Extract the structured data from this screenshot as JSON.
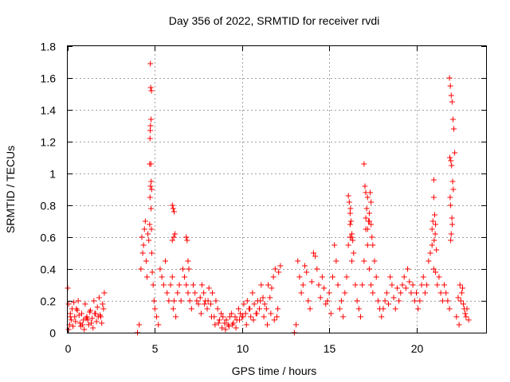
{
  "chart_data": {
    "type": "scatter",
    "title": "Day 356 of 2022, SRMTID for receiver rvdi",
    "xlabel": "GPS time / hours",
    "ylabel": "SRMTID / TECUs",
    "xlim": [
      0,
      24
    ],
    "ylim": [
      0,
      1.8
    ],
    "xticks": [
      "0",
      "5",
      "10",
      "15",
      "20"
    ],
    "yticks": [
      "0",
      "0.2",
      "0.4",
      "0.6",
      "0.8",
      "1",
      "1.2",
      "1.4",
      "1.6",
      "1.8"
    ],
    "xtick_values": [
      0,
      5,
      10,
      15,
      20
    ],
    "ytick_values": [
      0,
      0.2,
      0.4,
      0.6,
      0.8,
      1.0,
      1.2,
      1.4,
      1.6,
      1.8
    ],
    "grid": true,
    "marker": "+",
    "color": "#ff0000",
    "series": [
      {
        "name": "SRMTID",
        "x": [
          0.0,
          0.05,
          0.1,
          0.15,
          0.2,
          0.3,
          0.4,
          0.5,
          0.6,
          0.7,
          0.8,
          0.9,
          1.0,
          1.1,
          1.2,
          1.3,
          1.4,
          1.5,
          1.6,
          1.7,
          1.8,
          1.9,
          2.0,
          2.1,
          0.05,
          0.25,
          0.45,
          0.65,
          0.85,
          1.05,
          1.25,
          1.45,
          1.65,
          1.85,
          2.05,
          0.35,
          0.75,
          1.15,
          1.55,
          1.95,
          0.15,
          0.55,
          0.95,
          1.35,
          1.75,
          4.0,
          4.1,
          4.2,
          4.25,
          4.3,
          4.35,
          4.4,
          4.45,
          4.5,
          4.55,
          4.6,
          4.65,
          4.7,
          4.72,
          4.75,
          4.78,
          4.8,
          4.82,
          4.85,
          4.9,
          4.95,
          5.0,
          5.1,
          5.2,
          4.7,
          4.72,
          4.75,
          4.78,
          4.8,
          4.76,
          4.74,
          4.77,
          4.73,
          4.79,
          4.81,
          5.3,
          5.4,
          5.5,
          5.6,
          5.7,
          5.8,
          5.9,
          6.0,
          6.05,
          6.1,
          6.2,
          6.3,
          6.4,
          6.5,
          6.6,
          6.7,
          6.8,
          6.9,
          7.0,
          7.1,
          7.2,
          7.3,
          7.4,
          7.5,
          6.0,
          6.05,
          6.1,
          6.15,
          6.0,
          6.08,
          6.8,
          6.85,
          6.9,
          6.95,
          7.6,
          7.7,
          7.8,
          7.9,
          8.0,
          8.1,
          8.2,
          8.3,
          8.4,
          8.5,
          8.6,
          8.7,
          8.8,
          8.9,
          9.0,
          9.1,
          9.2,
          9.3,
          9.4,
          9.5,
          9.6,
          9.7,
          9.8,
          9.9,
          10.0,
          10.1,
          10.2,
          10.3,
          10.4,
          10.5,
          10.6,
          10.7,
          10.8,
          10.9,
          11.0,
          11.1,
          11.2,
          11.3,
          11.4,
          11.5,
          11.6,
          11.7,
          11.8,
          11.9,
          12.0,
          12.1,
          12.2,
          7.65,
          7.85,
          8.05,
          8.25,
          8.45,
          8.65,
          8.85,
          9.05,
          9.25,
          9.45,
          9.65,
          9.85,
          10.05,
          10.25,
          10.45,
          10.65,
          10.85,
          11.05,
          11.25,
          11.45,
          11.65,
          11.85,
          12.05,
          13.0,
          13.1,
          13.2,
          13.3,
          13.4,
          13.5,
          13.6,
          13.7,
          13.8,
          13.9,
          14.0,
          14.1,
          14.2,
          14.3,
          14.4,
          14.5,
          14.6,
          14.7,
          14.8,
          14.9,
          15.0,
          15.1,
          15.2,
          15.3,
          15.4,
          15.5,
          15.6,
          15.7,
          15.8,
          15.9,
          16.0,
          16.1,
          16.2,
          16.3,
          16.4,
          16.5,
          16.6,
          16.7,
          16.8,
          16.9,
          17.0,
          17.1,
          17.2,
          17.3,
          17.4,
          17.5,
          17.6,
          17.7,
          17.8,
          17.9,
          16.1,
          16.15,
          16.2,
          16.25,
          16.3,
          16.35,
          16.2,
          16.22,
          16.28,
          17.0,
          17.05,
          17.1,
          17.15,
          17.2,
          17.25,
          17.3,
          17.35,
          17.4,
          17.45,
          17.5,
          17.2,
          17.3,
          17.4,
          17.1,
          18.0,
          18.1,
          18.2,
          18.3,
          18.4,
          18.5,
          18.6,
          18.7,
          18.8,
          18.9,
          19.0,
          19.1,
          19.2,
          19.3,
          19.4,
          19.5,
          19.6,
          19.7,
          19.8,
          19.9,
          20.0,
          20.1,
          20.2,
          20.3,
          20.4,
          20.5,
          20.6,
          20.7,
          20.8,
          20.9,
          21.0,
          21.1,
          21.2,
          21.3,
          21.4,
          21.5,
          21.6,
          21.7,
          21.8,
          21.9,
          20.9,
          20.95,
          21.0,
          21.05,
          21.1,
          21.15,
          21.0,
          21.02,
          21.08,
          21.9,
          21.95,
          22.0,
          22.05,
          22.1,
          22.15,
          22.2,
          21.92,
          21.98,
          22.02,
          22.08,
          22.12,
          21.94,
          21.96,
          22.04,
          22.06,
          22.0,
          21.97,
          22.3,
          22.4,
          22.5,
          22.6,
          22.7,
          22.8,
          22.9,
          23.0,
          22.45,
          22.55,
          22.65,
          22.75,
          22.85
        ],
        "y": [
          0.28,
          0.18,
          0.05,
          0.12,
          0.08,
          0.04,
          0.1,
          0.15,
          0.2,
          0.06,
          0.12,
          0.08,
          0.18,
          0.1,
          0.05,
          0.14,
          0.09,
          0.2,
          0.12,
          0.16,
          0.22,
          0.1,
          0.18,
          0.25,
          0.02,
          0.15,
          0.07,
          0.11,
          0.05,
          0.09,
          0.13,
          0.03,
          0.07,
          0.11,
          0.15,
          0.19,
          0.04,
          0.08,
          0.12,
          0.06,
          0.1,
          0.14,
          0.02,
          0.06,
          0.1,
          0.0,
          0.05,
          0.4,
          0.6,
          0.5,
          0.55,
          0.65,
          0.7,
          0.45,
          0.35,
          0.62,
          0.58,
          0.68,
          0.85,
          0.92,
          0.78,
          0.65,
          0.5,
          0.38,
          0.3,
          0.2,
          0.15,
          0.1,
          0.05,
          1.06,
          1.22,
          1.3,
          1.34,
          1.52,
          1.54,
          1.69,
          1.06,
          1.27,
          0.95,
          0.9,
          0.4,
          0.35,
          0.3,
          0.45,
          0.25,
          0.2,
          0.3,
          0.35,
          0.15,
          0.2,
          0.1,
          0.25,
          0.3,
          0.2,
          0.4,
          0.35,
          0.3,
          0.25,
          0.2,
          0.15,
          0.3,
          0.25,
          0.2,
          0.18,
          0.8,
          0.78,
          0.76,
          0.62,
          0.58,
          0.6,
          0.6,
          0.58,
          0.45,
          0.4,
          0.22,
          0.3,
          0.25,
          0.2,
          0.15,
          0.28,
          0.18,
          0.25,
          0.1,
          0.2,
          0.15,
          0.08,
          0.12,
          0.1,
          0.06,
          0.08,
          0.05,
          0.1,
          0.12,
          0.06,
          0.1,
          0.08,
          0.15,
          0.12,
          0.1,
          0.18,
          0.12,
          0.2,
          0.15,
          0.1,
          0.25,
          0.18,
          0.12,
          0.2,
          0.15,
          0.3,
          0.22,
          0.18,
          0.15,
          0.3,
          0.22,
          0.28,
          0.35,
          0.4,
          0.1,
          0.38,
          0.42,
          0.12,
          0.18,
          0.2,
          0.1,
          0.05,
          0.06,
          0.03,
          0.02,
          0.04,
          0.05,
          0.03,
          0.08,
          0.1,
          0.05,
          0.15,
          0.08,
          0.12,
          0.2,
          0.1,
          0.05,
          0.12,
          0.08,
          0.15,
          0.0,
          0.05,
          0.45,
          0.35,
          0.25,
          0.3,
          0.42,
          0.38,
          0.2,
          0.15,
          0.32,
          0.5,
          0.48,
          0.4,
          0.3,
          0.22,
          0.35,
          0.28,
          0.18,
          0.2,
          0.25,
          0.12,
          0.35,
          0.55,
          0.45,
          0.3,
          0.15,
          0.2,
          0.1,
          0.25,
          0.35,
          0.55,
          0.6,
          0.45,
          0.5,
          0.3,
          0.2,
          0.15,
          0.1,
          0.3,
          0.45,
          0.65,
          0.55,
          0.4,
          0.3,
          0.25,
          0.45,
          0.35,
          0.2,
          0.15,
          0.86,
          0.82,
          0.75,
          0.7,
          0.62,
          0.58,
          0.68,
          0.78,
          0.6,
          1.06,
          0.92,
          0.88,
          0.78,
          0.85,
          0.7,
          0.75,
          0.88,
          0.82,
          0.6,
          0.55,
          0.65,
          0.7,
          0.68,
          0.72,
          0.1,
          0.15,
          0.2,
          0.25,
          0.18,
          0.35,
          0.3,
          0.22,
          0.15,
          0.28,
          0.2,
          0.25,
          0.3,
          0.35,
          0.28,
          0.4,
          0.32,
          0.25,
          0.3,
          0.2,
          0.25,
          0.15,
          0.2,
          0.3,
          0.35,
          0.25,
          0.3,
          0.45,
          0.5,
          0.55,
          0.4,
          0.38,
          0.3,
          0.35,
          0.25,
          0.2,
          0.3,
          0.25,
          0.2,
          0.15,
          0.65,
          0.7,
          0.96,
          0.74,
          0.68,
          0.52,
          0.85,
          0.58,
          0.62,
          1.6,
          1.55,
          1.49,
          1.45,
          1.34,
          1.28,
          1.13,
          1.1,
          1.08,
          1.05,
          0.95,
          0.9,
          0.85,
          0.8,
          0.72,
          0.68,
          0.62,
          0.58,
          0.1,
          0.22,
          0.3,
          0.25,
          0.18,
          0.12,
          0.15,
          0.08,
          0.05,
          0.2,
          0.28,
          0.15,
          0.1
        ]
      }
    ]
  }
}
